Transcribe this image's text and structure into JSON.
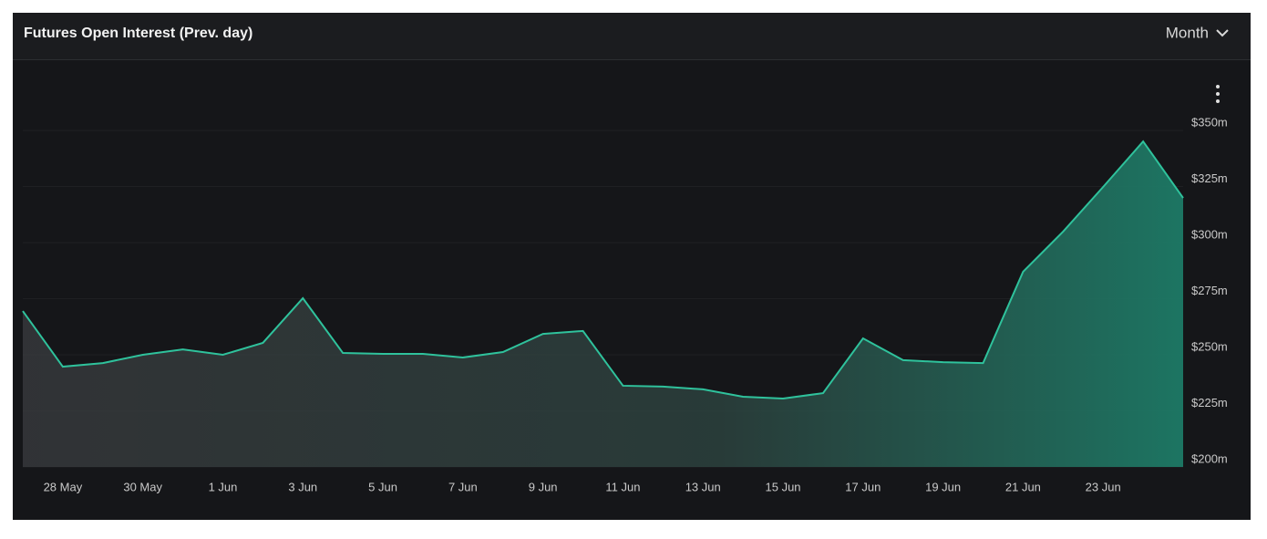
{
  "chart_data": {
    "type": "area",
    "title": "Futures Open Interest (Prev. day)",
    "categories": [
      null,
      "28 May",
      null,
      "30 May",
      null,
      "1 Jun",
      null,
      "3 Jun",
      null,
      "5 Jun",
      null,
      "7 Jun",
      null,
      "9 Jun",
      null,
      "11 Jun",
      null,
      "13 Jun",
      null,
      "15 Jun",
      null,
      "17 Jun",
      null,
      "19 Jun",
      null,
      "21 Jun",
      null,
      "23 Jun",
      null,
      null
    ],
    "values": [
      269.5,
      244.7,
      246.3,
      250,
      252.4,
      250,
      255.3,
      275.2,
      250.8,
      250.4,
      250.4,
      248.8,
      251.2,
      259.3,
      260.6,
      236.2,
      235.8,
      234.6,
      231.3,
      230.5,
      232.9,
      257.3,
      247.6,
      246.7,
      246.3,
      287,
      304.9,
      324.8,
      345.1,
      319.9
    ],
    "color": "#2fc29c",
    "ylim": [
      200,
      350
    ],
    "yticks": [
      {
        "value": 200,
        "label": "$200m"
      },
      {
        "value": 225,
        "label": "$225m"
      },
      {
        "value": 250,
        "label": "$250m"
      },
      {
        "value": 275,
        "label": "$275m"
      },
      {
        "value": 300,
        "label": "$300m"
      },
      {
        "value": 325,
        "label": "$325m"
      },
      {
        "value": 350,
        "label": "$350m"
      }
    ],
    "grid": true
  },
  "controls": {
    "period": "Month"
  }
}
